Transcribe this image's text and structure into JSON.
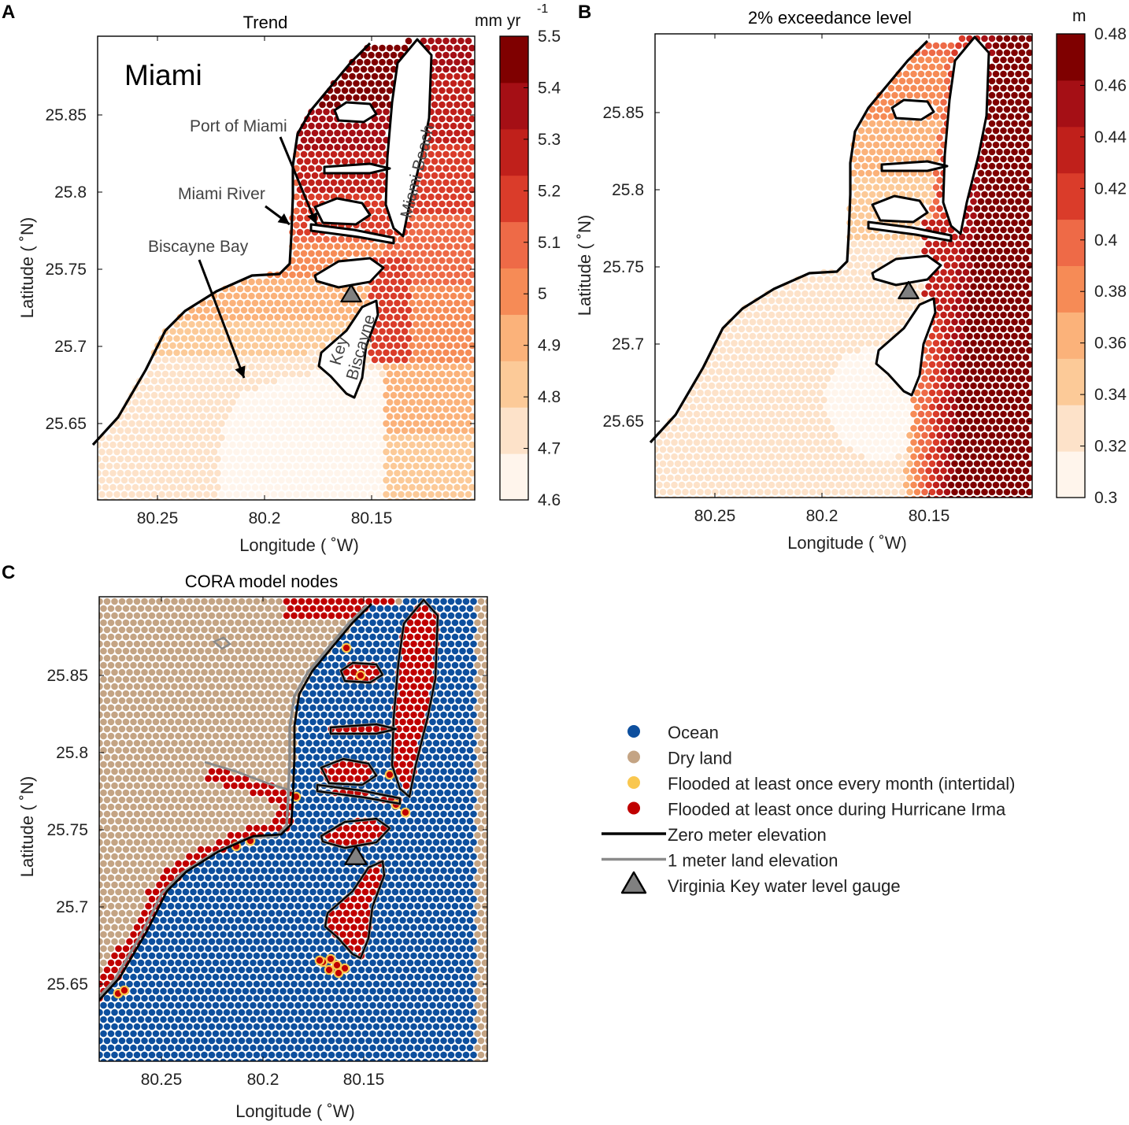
{
  "figure": {
    "panel_letters": [
      "A",
      "B",
      "C"
    ],
    "longitude_label": "Longitude ( ˚W)",
    "latitude_label": "Latitude ( ˚N)",
    "lon_ticks": [
      "80.25",
      "80.2",
      "80.15"
    ],
    "lat_ticks": [
      "25.85",
      "25.8",
      "25.75",
      "25.7",
      "25.65"
    ]
  },
  "panel_a": {
    "title": "Trend",
    "place_label": "Miami",
    "colorbar_unit": "mm yr",
    "colorbar_exponent": "-1",
    "colorbar_ticks": [
      "5.5",
      "5.4",
      "5.3",
      "5.2",
      "5.1",
      "5",
      "4.9",
      "4.8",
      "4.7",
      "4.6"
    ],
    "annotations": {
      "port": "Port of Miami",
      "river": "Miami River",
      "bay": "Biscayne Bay",
      "beach": "Miami Beach",
      "key1": "Key",
      "key2": "Biscayne"
    }
  },
  "panel_b": {
    "title": "2% exceedance level",
    "colorbar_unit": "m",
    "colorbar_ticks": [
      "0.48",
      "0.46",
      "0.44",
      "0.42",
      "0.4",
      "0.38",
      "0.36",
      "0.34",
      "0.32",
      "0.3"
    ]
  },
  "panel_c": {
    "title": "CORA model nodes",
    "legend": [
      {
        "label": "Ocean",
        "color": "#0d4f9e",
        "symbol": "dot"
      },
      {
        "label": "Dry land",
        "color": "#c4a484",
        "symbol": "dot"
      },
      {
        "label": "Flooded at least once every month (intertidal)",
        "color": "#f9c74f",
        "symbol": "dot"
      },
      {
        "label": "Flooded at least once during Hurricane Irma",
        "color": "#c00000",
        "symbol": "dot"
      },
      {
        "label": "Zero meter elevation",
        "color": "#000000",
        "symbol": "line"
      },
      {
        "label": "1 meter land elevation",
        "color": "#8a8a8a",
        "symbol": "line"
      },
      {
        "label": "Virginia Key water level gauge",
        "color": "#808080",
        "symbol": "triangle"
      }
    ]
  },
  "chart_data": [
    {
      "type": "scatter",
      "title": "Trend",
      "xlabel": "Longitude ( ˚W)",
      "ylabel": "Latitude ( ˚N)",
      "xlim": [
        80.277,
        80.103
      ],
      "ylim": [
        25.6,
        25.9
      ],
      "color_variable": "sea-level trend",
      "clim": [
        4.6,
        5.5
      ],
      "series": [
        {
          "name": "Virginia Key water level gauge",
          "x": [
            80.161
          ],
          "y": [
            25.731
          ]
        }
      ]
    },
    {
      "type": "scatter",
      "title": "2% exceedance level",
      "xlabel": "Longitude ( ˚W)",
      "ylabel": "Latitude ( ˚N)",
      "xlim": [
        80.277,
        80.103
      ],
      "ylim": [
        25.6,
        25.9
      ],
      "color_variable": "2% exceedance level",
      "clim": [
        0.3,
        0.48
      ],
      "series": [
        {
          "name": "Virginia Key water level gauge",
          "x": [
            80.161
          ],
          "y": [
            25.731
          ]
        }
      ]
    },
    {
      "type": "scatter",
      "title": "CORA model nodes",
      "xlabel": "Longitude ( ˚W)",
      "ylabel": "Latitude ( ˚N)",
      "xlim": [
        80.277,
        80.103
      ],
      "ylim": [
        25.6,
        25.9
      ],
      "categories": [
        "Ocean",
        "Dry land",
        "Flooded at least once every month (intertidal)",
        "Flooded at least once during Hurricane Irma"
      ],
      "series": [
        {
          "name": "Virginia Key water level gauge",
          "x": [
            80.161
          ],
          "y": [
            25.731
          ]
        }
      ]
    }
  ]
}
